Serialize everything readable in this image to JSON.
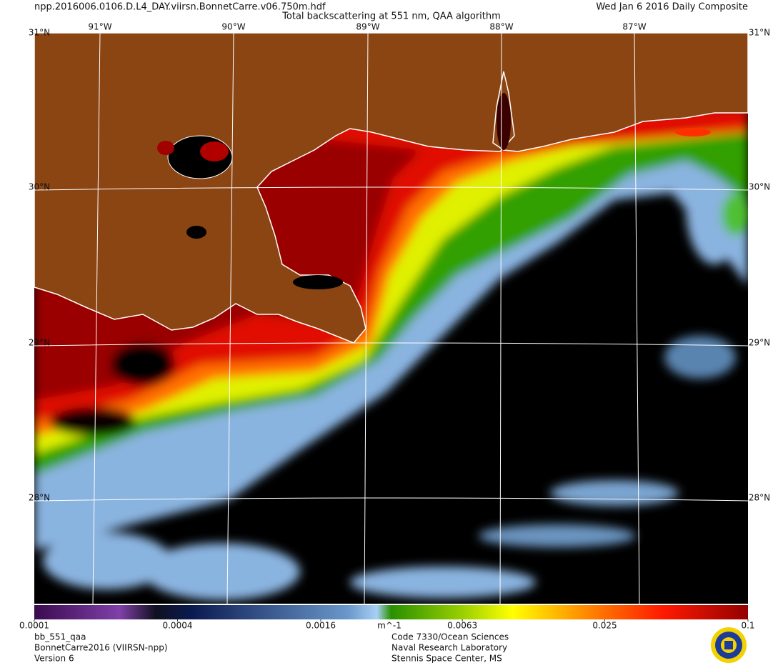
{
  "header": {
    "file": "npp.2016006.0106.D.L4_DAY.viirsn.BonnetCarre.v06.750m.hdf",
    "title": "Total backscattering at 551 nm, QAA algorithm",
    "date": "Wed Jan  6 2016 Daily Composite"
  },
  "map": {
    "lon_labels": [
      "91°W",
      "90°W",
      "89°W",
      "88°W",
      "87°W"
    ],
    "lat_labels": [
      "31°N",
      "30°N",
      "29°N",
      "28°N"
    ]
  },
  "colorbar": {
    "scale": "log",
    "lim": [
      0.0001,
      0.1
    ],
    "ticks": [
      0.0001,
      0.0004,
      0.0016,
      0.0063,
      0.025,
      0.1
    ],
    "unit": "m^-1"
  },
  "footer": {
    "left": [
      "bb_551_qaa",
      "BonnetCarre2016 (VIIRSN-npp)",
      "Version 6"
    ],
    "center": [
      "Code 7330/Ocean Sciences",
      "Naval Research Laboratory",
      "Stennis Space Center, MS"
    ]
  }
}
